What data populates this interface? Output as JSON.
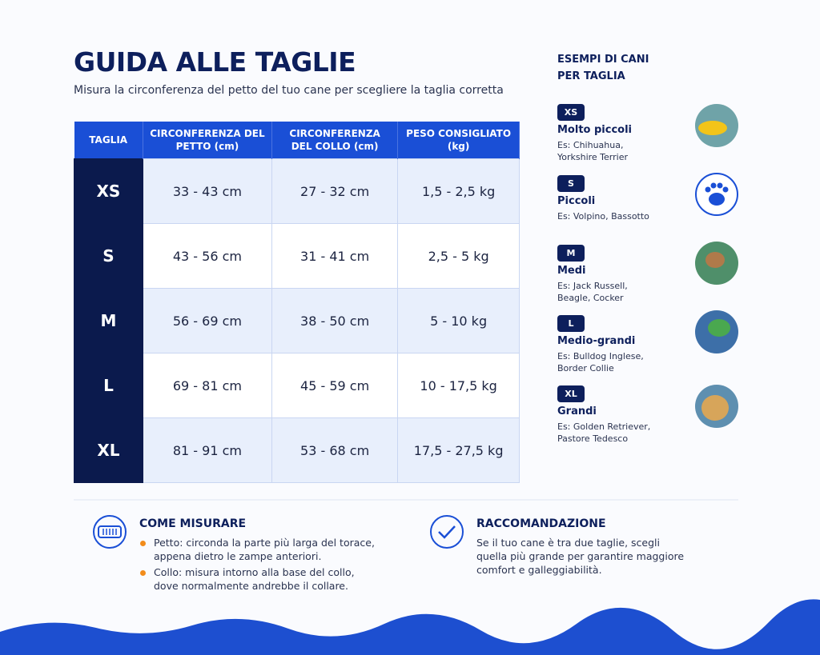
{
  "header": {
    "title": "GUIDA ALLE TAGLIE",
    "subtitle": "Misura la circonferenza del petto del tuo cane per scegliere la taglia corretta"
  },
  "table": {
    "headers": [
      "TAGLIA",
      "CIRCONFERENZA DEL PETTO (cm)",
      "CIRCONFERENZA DEL COLLO (cm)",
      "PESO CONSIGLIATO (kg)"
    ],
    "rows": [
      [
        "XS",
        "33 - 43 cm",
        "27 - 32 cm",
        "1,5 - 2,5 kg"
      ],
      [
        "S",
        "43 - 56 cm",
        "31 - 41 cm",
        "2,5 - 5 kg"
      ],
      [
        "M",
        "56 - 69 cm",
        "38 - 50 cm",
        "5 - 10 kg"
      ],
      [
        "L",
        "69 - 81 cm",
        "45 - 59 cm",
        "10 - 17,5 kg"
      ],
      [
        "XL",
        "81 - 91 cm",
        "53 - 68 cm",
        "17,5 - 27,5 kg"
      ]
    ]
  },
  "examples": {
    "title": "ESEMPI DI CANI PER TAGLIA",
    "items": [
      {
        "size": "XS",
        "label": "Molto piccoli",
        "breeds": "Es: Chihuahua, Yorkshire Terrier"
      },
      {
        "size": "S",
        "label": "Piccoli",
        "breeds": "Es: Volpino, Bassotto"
      },
      {
        "size": "M",
        "label": "Medi",
        "breeds": "Es: Jack Russell, Beagle, Cocker"
      },
      {
        "size": "L",
        "label": "Medio-grandi",
        "breeds": "Es: Bulldog Inglese, Border Collie"
      },
      {
        "size": "XL",
        "label": "Grandi",
        "breeds": "Es: Golden Retriever, Pastore Tedesco"
      }
    ]
  },
  "how_to": {
    "title": "COME MISURARE",
    "items": [
      "Petto: circonda la parte più larga del torace, appena dietro le zampe anteriori.",
      "Collo: misura intorno alla base del collo, dove normalmente andrebbe il collare."
    ]
  },
  "recommendation": {
    "title": "RACCOMANDAZIONE",
    "text": "Se il tuo cane è tra due taglie, scegli quella più grande per garantire maggiore comfort e galleggiabilità."
  }
}
